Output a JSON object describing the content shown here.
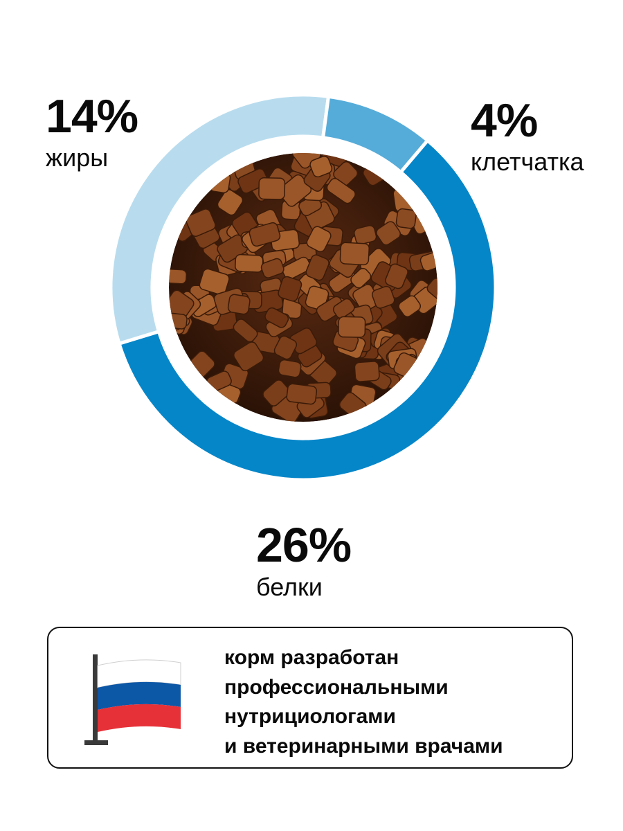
{
  "chart_data": {
    "type": "pie",
    "style": "donut",
    "slices": [
      {
        "label": "жиры",
        "percent_text": "14%",
        "value": 14,
        "color": "#b8dcee"
      },
      {
        "label": "клетчатка",
        "percent_text": "4%",
        "value": 4,
        "color": "#55acd9"
      },
      {
        "label": "белки",
        "percent_text": "26%",
        "value": 26,
        "color": "#0586c9"
      }
    ],
    "center_image": "dry-pet-food-kibble-photo"
  },
  "info_card": {
    "icon": "russian-flag-icon",
    "flag_colors": [
      "#ffffff",
      "#0d57a7",
      "#e63138"
    ],
    "lines": [
      "корм разработан",
      "профессиональными",
      "нутрициологами",
      "и ветеринарными врачами"
    ]
  }
}
